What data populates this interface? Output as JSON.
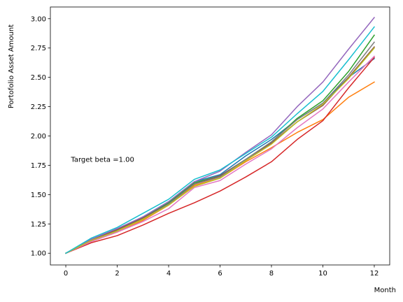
{
  "chart_data": {
    "type": "line",
    "title": "",
    "xlabel": "Month",
    "ylabel": "Portofolio Asset Amount",
    "xlim": [
      -0.6,
      12.6
    ],
    "ylim": [
      0.9,
      3.1
    ],
    "xticks": [
      0,
      2,
      4,
      6,
      8,
      10,
      12
    ],
    "xtick_labels": [
      "0",
      "2",
      "4",
      "6",
      "8",
      "10",
      "12"
    ],
    "yticks": [
      1.0,
      1.25,
      1.5,
      1.75,
      2.0,
      2.25,
      2.5,
      2.75,
      3.0
    ],
    "ytick_labels": [
      "1.00",
      "1.25",
      "1.50",
      "1.75",
      "2.00",
      "2.25",
      "2.50",
      "2.75",
      "3.00"
    ],
    "grid": false,
    "legend": "none",
    "annotation": {
      "text": "Target beta =1.00",
      "x": 0.2,
      "y": 1.8
    },
    "x": [
      0,
      1,
      2,
      3,
      4,
      5,
      6,
      7,
      8,
      9,
      10,
      11,
      12
    ],
    "series": [
      {
        "color": "#1f77b4",
        "values": [
          1.0,
          1.12,
          1.2,
          1.31,
          1.44,
          1.61,
          1.67,
          1.83,
          1.97,
          2.14,
          2.28,
          2.5,
          2.66
        ]
      },
      {
        "color": "#ff7f0e",
        "values": [
          1.0,
          1.1,
          1.18,
          1.28,
          1.41,
          1.58,
          1.64,
          1.78,
          1.9,
          2.03,
          2.14,
          2.33,
          2.46
        ]
      },
      {
        "color": "#2ca02c",
        "values": [
          1.0,
          1.11,
          1.2,
          1.3,
          1.43,
          1.6,
          1.66,
          1.8,
          1.95,
          2.15,
          2.3,
          2.55,
          2.86
        ]
      },
      {
        "color": "#d62728",
        "values": [
          1.0,
          1.09,
          1.15,
          1.24,
          1.34,
          1.43,
          1.53,
          1.65,
          1.78,
          1.97,
          2.13,
          2.41,
          2.67
        ]
      },
      {
        "color": "#9467bd",
        "values": [
          1.0,
          1.12,
          1.21,
          1.31,
          1.44,
          1.61,
          1.7,
          1.86,
          2.01,
          2.25,
          2.46,
          2.74,
          3.01
        ]
      },
      {
        "color": "#8c564b",
        "values": [
          1.0,
          1.11,
          1.2,
          1.3,
          1.42,
          1.59,
          1.66,
          1.8,
          1.94,
          2.12,
          2.26,
          2.5,
          2.76
        ]
      },
      {
        "color": "#e377c2",
        "values": [
          1.0,
          1.1,
          1.18,
          1.27,
          1.38,
          1.56,
          1.62,
          1.76,
          1.89,
          2.07,
          2.23,
          2.46,
          2.68
        ]
      },
      {
        "color": "#7f7f7f",
        "values": [
          1.0,
          1.11,
          1.19,
          1.29,
          1.42,
          1.59,
          1.65,
          1.8,
          1.95,
          2.14,
          2.28,
          2.52,
          2.8
        ]
      },
      {
        "color": "#bcbd22",
        "values": [
          1.0,
          1.11,
          1.19,
          1.29,
          1.41,
          1.57,
          1.64,
          1.79,
          1.93,
          2.12,
          2.27,
          2.49,
          2.75
        ]
      },
      {
        "color": "#17becf",
        "values": [
          1.0,
          1.13,
          1.22,
          1.34,
          1.46,
          1.63,
          1.71,
          1.85,
          1.99,
          2.19,
          2.38,
          2.65,
          2.93
        ]
      }
    ]
  }
}
